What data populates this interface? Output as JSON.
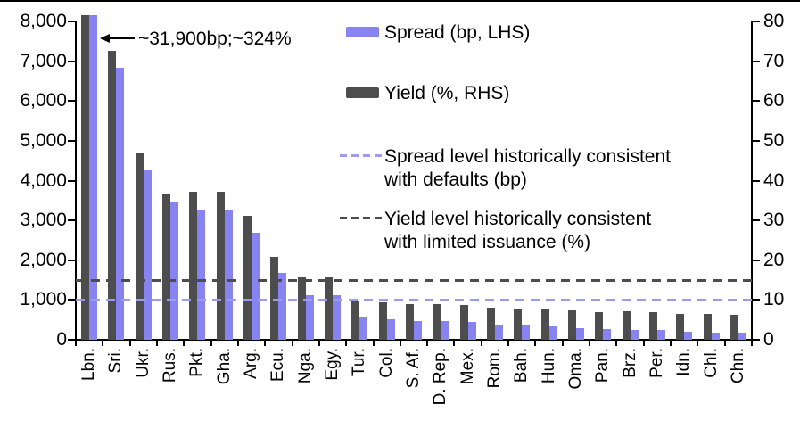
{
  "annotation": {
    "text": "~31,900bp;~324%"
  },
  "legend": {
    "items": [
      {
        "label": "Spread (bp, LHS)",
        "swatch": "bar",
        "color": "#8783F0"
      },
      {
        "label": "Yield (%, RHS)",
        "swatch": "bar",
        "color": "#4D4D4D"
      },
      {
        "line1": "Spread level historically consistent",
        "line2": "with defaults (bp)",
        "swatch": "dash",
        "color": "#9B9BF0"
      },
      {
        "line1": "Yield level historically consistent",
        "line2": "with limited issuance (%)",
        "swatch": "dash",
        "color": "#4D4D4D"
      }
    ]
  },
  "chart_data": {
    "type": "bar",
    "categories": [
      "Lbn.",
      "Sri.",
      "Ukr.",
      "Rus.",
      "Pkt.",
      "Gha.",
      "Arg.",
      "Ecu.",
      "Nga.",
      "Egy.",
      "Tur.",
      "Col.",
      "S. Af.",
      "D. Rep.",
      "Mex.",
      "Rom.",
      "Bah.",
      "Hun.",
      "Oma.",
      "Pan.",
      "Brz.",
      "Per.",
      "Idn.",
      "Chl.",
      "Chn."
    ],
    "series": [
      {
        "name": "Spread (bp, LHS)",
        "axis": "left",
        "color": "#8783F0",
        "values": [
          31900,
          6830,
          4260,
          3440,
          3280,
          3270,
          2680,
          1670,
          1120,
          1110,
          560,
          510,
          460,
          470,
          440,
          370,
          380,
          355,
          300,
          265,
          250,
          250,
          200,
          185,
          170
        ]
      },
      {
        "name": "Yield (%, RHS)",
        "axis": "right",
        "color": "#4D4D4D",
        "values": [
          324,
          72.5,
          46.9,
          36.6,
          37.2,
          37.2,
          31.2,
          20.8,
          15.7,
          15.7,
          9.8,
          9.4,
          9.0,
          8.9,
          8.8,
          8.0,
          7.9,
          7.6,
          7.4,
          7.0,
          7.1,
          6.9,
          6.4,
          6.5,
          6.2
        ]
      }
    ],
    "reference_lines": [
      {
        "label": "Spread level historically consistent with defaults (bp)",
        "axis": "left",
        "value": 1000,
        "color": "#9B9BF0"
      },
      {
        "label": "Yield level historically consistent with limited issuance (%)",
        "axis": "right",
        "value": 15,
        "color": "#4D4D4D"
      }
    ],
    "axes": {
      "left": {
        "min": 0,
        "max": 8000,
        "tick_labels": [
          "0",
          "1,000",
          "2,000",
          "3,000",
          "4,000",
          "5,000",
          "6,000",
          "7,000",
          "8,000"
        ]
      },
      "right": {
        "min": 0,
        "max": 80,
        "tick_labels": [
          "0",
          "10",
          "20",
          "30",
          "40",
          "50",
          "60",
          "70",
          "80"
        ]
      }
    },
    "grid": false,
    "legend_position": "top-right",
    "annotation_target": "Lbn.",
    "annotation_text": "~31,900bp;~324%"
  }
}
